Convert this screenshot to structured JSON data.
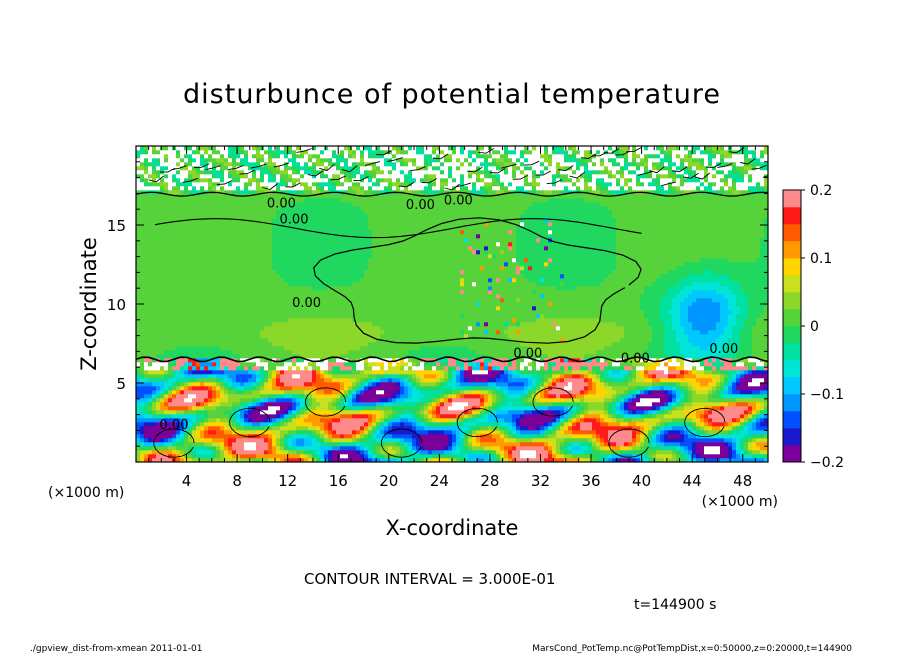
{
  "chart_data": {
    "type": "heatmap",
    "title": "disturbunce of potential temperature",
    "xlabel": "X-coordinate",
    "ylabel": "Z-coordinate",
    "x_unit_label": "(×1000 m)",
    "y_unit_label": "(×1000 m)",
    "xlim": [
      0,
      50
    ],
    "ylim": [
      0,
      20
    ],
    "x_ticks": [
      4,
      8,
      12,
      16,
      20,
      24,
      28,
      32,
      36,
      40,
      44,
      48
    ],
    "y_ticks": [
      5,
      10,
      15
    ],
    "colorbar": {
      "min": -0.2,
      "max": 0.2,
      "tick_values": [
        0.2,
        0.1,
        0,
        -0.1,
        -0.2
      ],
      "tick_labels": [
        "0.2",
        "0.1",
        "0",
        "−0.1",
        "−0.2"
      ],
      "colors": [
        "#7b0099",
        "#1a1acc",
        "#0050ff",
        "#0096ff",
        "#00c8ff",
        "#00e5d8",
        "#00e0a0",
        "#20d860",
        "#56d23a",
        "#8cd82a",
        "#c8e01e",
        "#ffd400",
        "#ff9a00",
        "#ff5a00",
        "#ff1a1a",
        "#ff8a8a"
      ]
    },
    "contour_interval_text": "CONTOUR INTERVAL = 3.000E-01",
    "contour_labels": [
      "0.00",
      "0.00",
      "0.00",
      "0.00",
      "0.00",
      "0.00",
      "0.00",
      "0.00",
      "0.00"
    ],
    "time_text": "t=144900 s",
    "regions": {
      "upper_noise_band_z": [
        17,
        20
      ],
      "smooth_layer_z": [
        6.5,
        17
      ],
      "turbulent_layer_z": [
        0,
        6.5
      ]
    }
  },
  "footer": {
    "left": "./gpview_dist-from-xmean  2011-01-01",
    "right": "MarsCond_PotTemp.nc@PotTempDist,x=0:50000,z=0:20000,t=144900"
  }
}
